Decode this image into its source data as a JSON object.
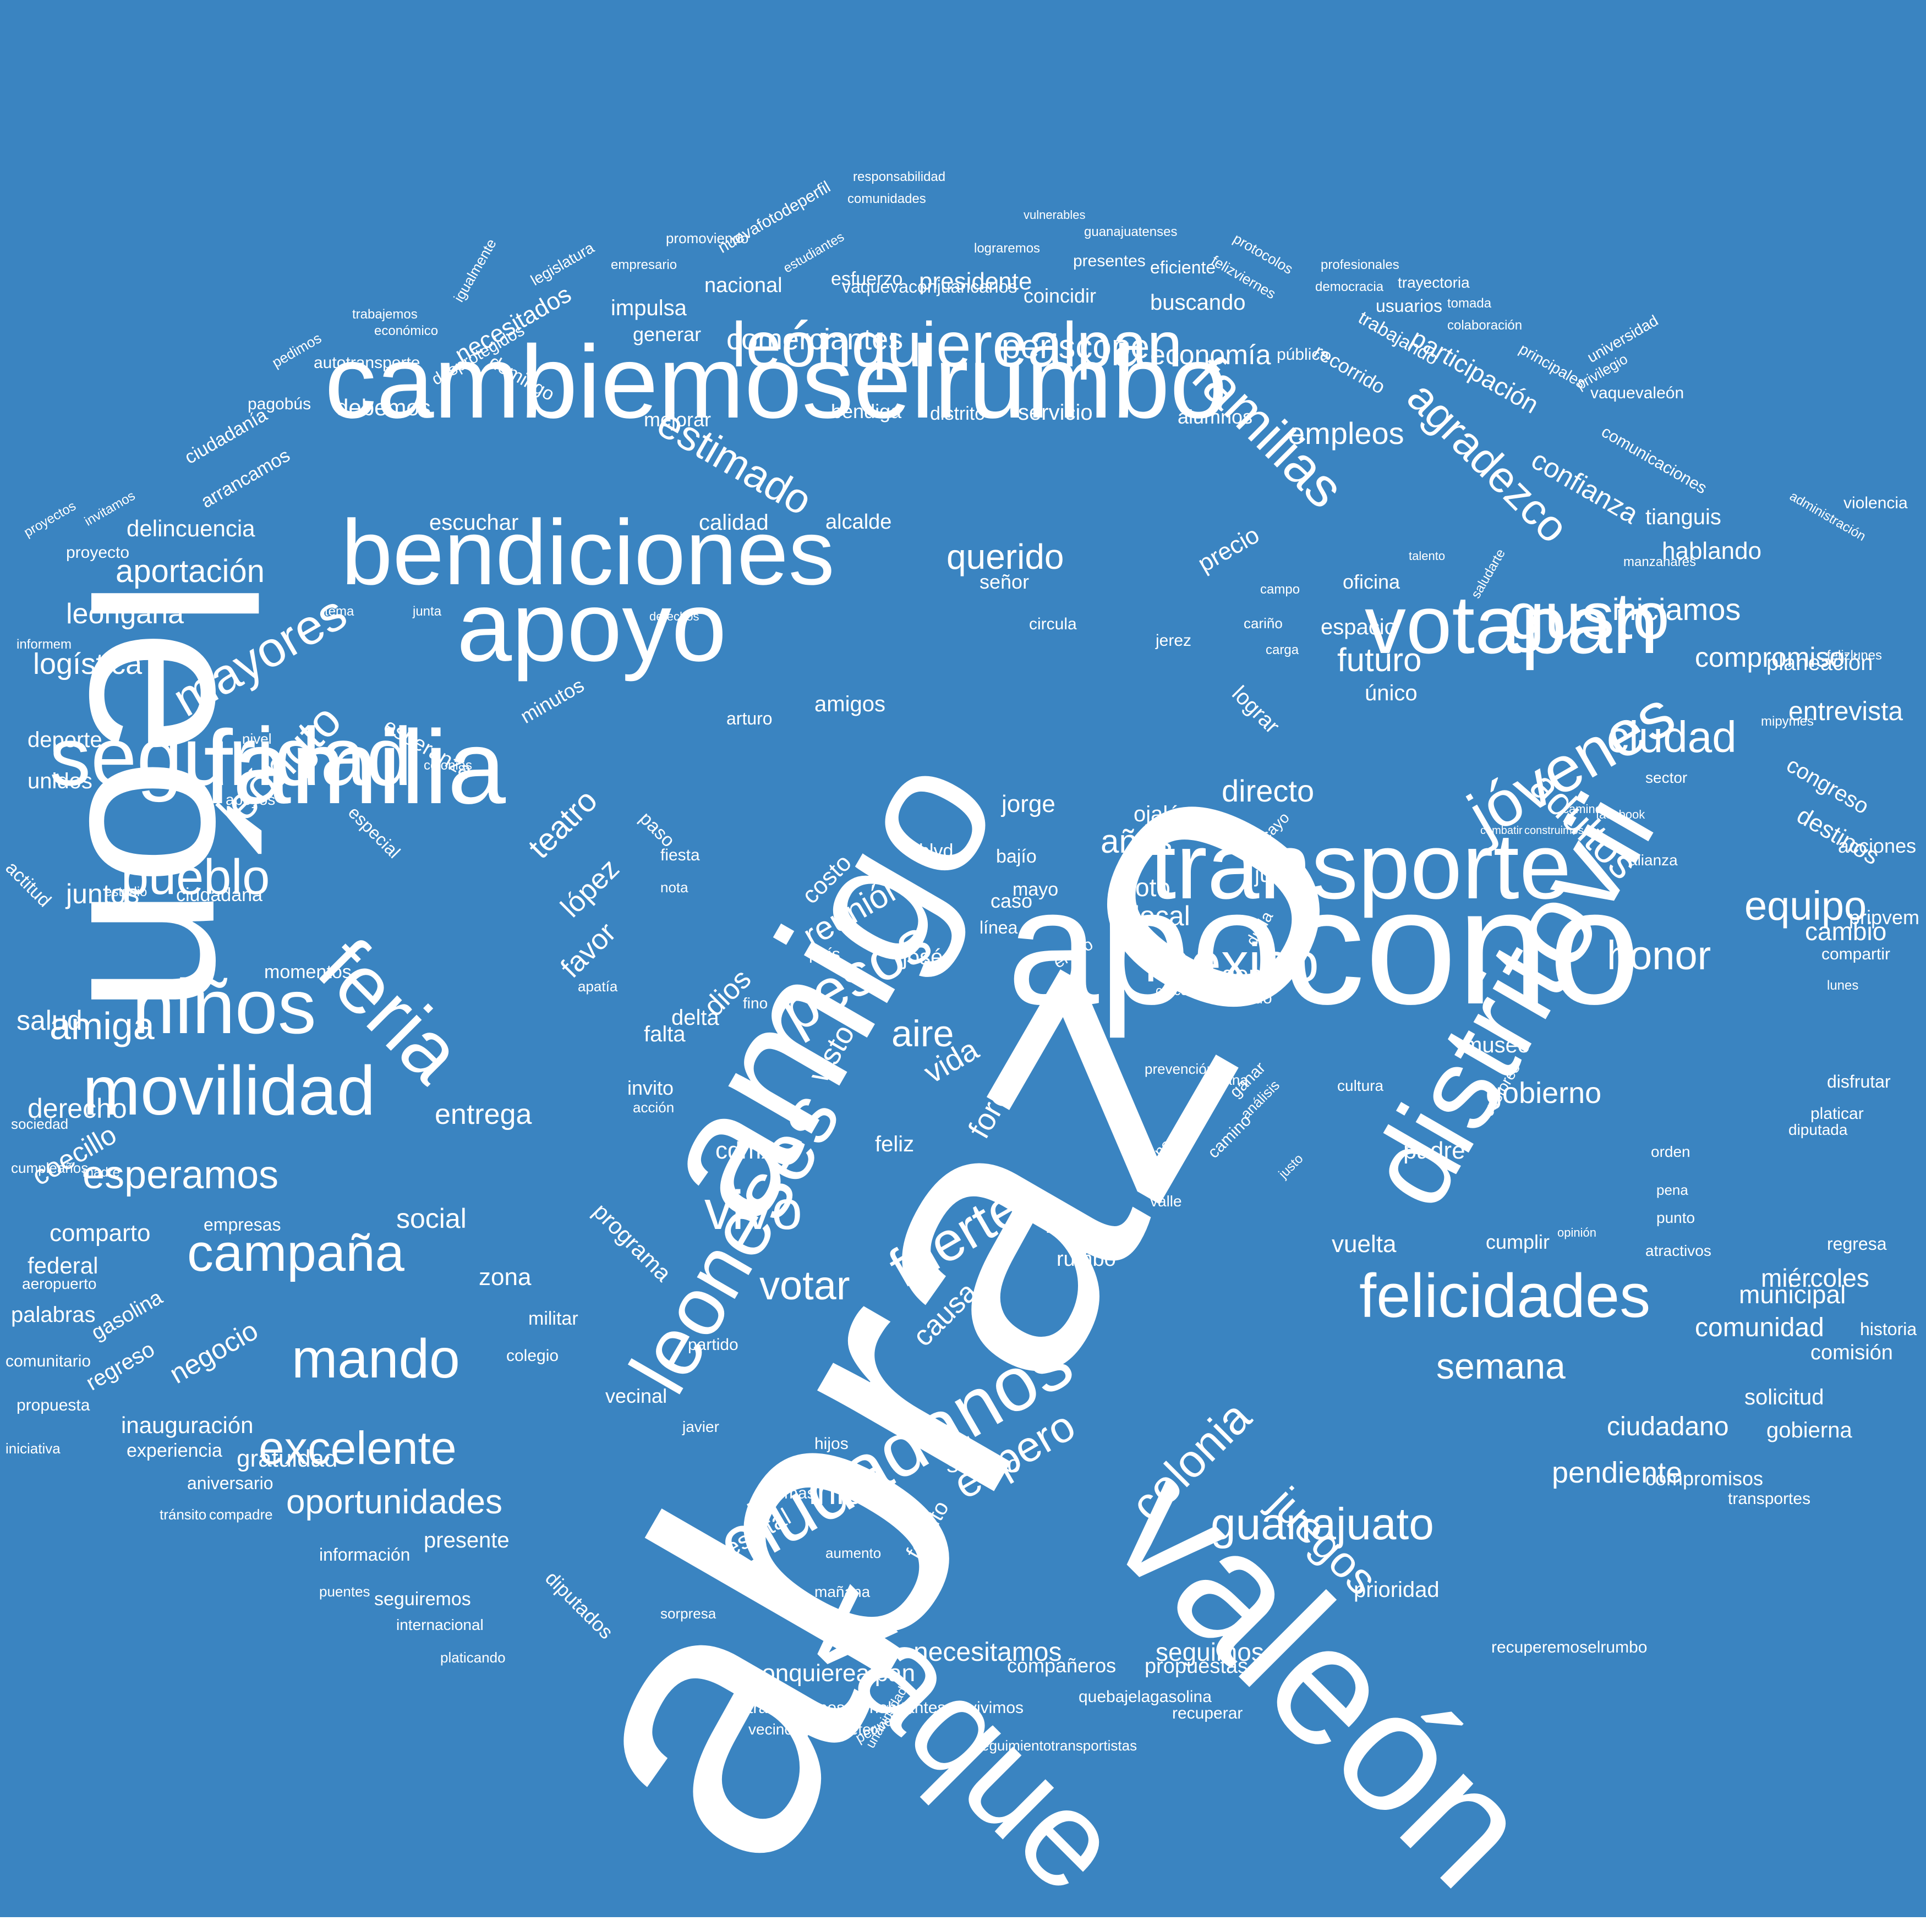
{
  "colors": {
    "background": "#3a84c1",
    "text": "#ffffff",
    "border": "#ffffff"
  },
  "words": [
    "abrazo",
    "león",
    "amigo",
    "valeón",
    "apocono",
    "distritovii",
    "vaquevaleón",
    "cambiemoselrumbo",
    "bendiciones",
    "apoyo",
    "familia",
    "votapan",
    "transporte",
    "leonesesciudadanos",
    "ciudadanos",
    "leoneses",
    "seguridad",
    "movilidad",
    "feria",
    "niños",
    "leónquierealpan",
    "familias",
    "jóvenes",
    "gusto",
    "méxico",
    "felicidades",
    "pesos",
    "fuerte",
    "campaña",
    "mando",
    "excelente",
    "pueblo",
    "mayores",
    "leóngto",
    "guanajuato",
    "colonia",
    "juegos",
    "espero",
    "oportunidades",
    "esperamos",
    "amiga",
    "agradezco",
    "adultos",
    "ciudad",
    "equipo",
    "honor",
    "semana",
    "vivo",
    "votar",
    "teatro",
    "reunión",
    "aire",
    "vida",
    "dios",
    "estimado",
    "periscope",
    "comerciantes",
    "economía",
    "empleos",
    "confianza",
    "participación",
    "iniciamos",
    "compromiso",
    "querido",
    "aportación",
    "delincuencia",
    "logística",
    "salud",
    "derecho",
    "leóngana",
    "juntos",
    "unidos",
    "deporte",
    "coecillo",
    "entrega",
    "negocio",
    "inauguración",
    "gratuidad",
    "ciudadano",
    "pendiente",
    "necesitamos",
    "seguimos",
    "leonquierealpan",
    "inicio",
    "seguro",
    "directo",
    "años",
    "voto",
    "local",
    "gente",
    "gobierno",
    "museo",
    "futuro",
    "espacio",
    "oficina",
    "único",
    "tianguis",
    "hablando",
    "planeación",
    "entrevista",
    "congreso",
    "destinos",
    "acciones",
    "cambio",
    "comunidad",
    "municipal",
    "comisión",
    "solicitud",
    "gobierna",
    "compromisos",
    "transportes",
    "miércoles",
    "historia",
    "regresa",
    "cumplir",
    "vuelta",
    "padre",
    "prioridad",
    "propuestas",
    "compañeros",
    "recuperemoselrumbo",
    "quebajelagasolina",
    "trabajaremos",
    "habitantes",
    "vivimos",
    "recuperar",
    "seguimiento",
    "transportistas",
    "felicito",
    "estatal",
    "causa",
    "visto",
    "foro",
    "costo",
    "favor",
    "lópez",
    "josé",
    "blvd",
    "jorge",
    "ojalá",
    "bajío",
    "mayo",
    "junio",
    "lograr",
    "cdmx",
    "feliz",
    "listos",
    "rumbo",
    "zona",
    "social",
    "comparto",
    "empresas",
    "federal",
    "palabras",
    "gasolina",
    "regreso",
    "comunitario",
    "propuesta",
    "experiencia",
    "aniversario",
    "tránsito",
    "compadre",
    "información",
    "puentes",
    "internacional",
    "platicando",
    "seguiremos",
    "presente",
    "diputados",
    "programa",
    "partido",
    "militar",
    "colegio",
    "vecinal",
    "javier",
    "hijos",
    "temas",
    "aumento",
    "vecinos",
    "prometer",
    "pequeños",
    "unanimidad",
    "mañana",
    "sorpresa",
    "presidente",
    "coincidir",
    "buscando",
    "eficiente",
    "nacional",
    "esfuerzo",
    "impulsa",
    "generar",
    "bendiga",
    "distrito",
    "servicio",
    "alumnos",
    "mejorar",
    "domingo",
    "debemos",
    "autotransporte",
    "necesitados",
    "desprotegidos",
    "legislatura",
    "igualmente",
    "pagobús",
    "ciudadanía",
    "arrancamos",
    "invitamos",
    "proyecto",
    "proyectos",
    "escuchar",
    "calidad",
    "alcalde",
    "señor",
    "amigos",
    "precio",
    "trabajando",
    "recorrido",
    "pública",
    "usuarios",
    "tomada",
    "colaboración",
    "principales",
    "universidad",
    "comunicaciones",
    "violencia",
    "administración",
    "privilegio",
    "vaquevaleón",
    "manzanares",
    "responsabilidad",
    "vaquevaconjuancarlos",
    "comunidades",
    "lograremos",
    "nuevafotodeperfil",
    "promoviendo",
    "empresario",
    "estudiantes",
    "vulnerables",
    "guanajuatenses",
    "presentes",
    "protocolos",
    "felizviernes",
    "democracia",
    "trayectoria",
    "profesionales",
    "económico",
    "trabajemos",
    "pedimos",
    "esperanza",
    "minutos",
    "arturo",
    "circula",
    "mundo",
    "duda",
    "tocayo",
    "alianza",
    "sector",
    "ganar",
    "análisis",
    "nivel",
    "apoyos",
    "especial",
    "actitud",
    "estudio",
    "ciudadana",
    "momentos",
    "apatía",
    "fiesta",
    "paso",
    "nota",
    "país",
    "caso",
    "línea",
    "éxito",
    "enero",
    "cultura",
    "prevención",
    "gana",
    "gane",
    "valle",
    "camino",
    "justo",
    "castores",
    "pena",
    "orden",
    "punto",
    "diputada",
    "platicar",
    "disfrutar",
    "compartir",
    "lunes",
    "pripvem",
    "directo",
    "escuchar",
    "iniciativa",
    "aeropuerto",
    "madre",
    "sociedad",
    "cumpleaños",
    "colonias",
    "derechos",
    "junta",
    "tema",
    "informem",
    "reunión",
    "fino",
    "falta",
    "delta",
    "gasolina",
    "invito",
    "acción",
    "crecer",
    "cariño",
    "carga",
    "campo",
    "jerez",
    "atractivos",
    "vaquevaleón",
    "felizlunes",
    "mipymes",
    "facebook",
    "combatir",
    "construimos",
    "caminos",
    "opinión",
    "saludarte",
    "talento"
  ],
  "large_words": {
    "w1": "abrazo",
    "w2": "león",
    "w3": "amigo",
    "w4": "valeón",
    "w5": "apocono",
    "w6": "distritovii",
    "w7": "vaque",
    "w8": "cambiemoselrumbo",
    "w9": "bendiciones",
    "w10": "apoyo",
    "w11": "familia",
    "w12": "votapan",
    "w13": "transporte",
    "w14": "ciudadanos",
    "w15": "leoneses",
    "w16": "seguridad",
    "w17": "movilidad",
    "w18": "feria",
    "w19": "niños",
    "w20": "leónquierealpan",
    "w21": "familias",
    "w22": "jóvenes",
    "w23": "gusto",
    "w24": "méxico",
    "w25": "felicidades",
    "w26": "pesos",
    "w27": "fuerte",
    "w28": "campaña",
    "w29": "mando",
    "w30": "excelente",
    "w31": "pueblo",
    "w32": "mayores",
    "w33": "leóngto",
    "w34": "guanajuato",
    "w35": "colonia",
    "w36": "juegos",
    "w37": "espero",
    "w38": "oportunidades",
    "w39": "esperamos",
    "w40": "amiga",
    "w41": "agradezco",
    "w42": "adultos",
    "w43": "ciudad",
    "w44": "equipo",
    "w45": "honor",
    "w46": "semana",
    "w47": "vivo",
    "w48": "votar",
    "w49": "teatro",
    "w50": "reunión",
    "w51": "aire",
    "w52": "vida",
    "w53": "dios",
    "w54": "estimado",
    "w55": "periscope",
    "w56": "comerciantes",
    "w57": "economía",
    "w58": "empleos",
    "w59": "confianza",
    "w60": "participación",
    "w61": "iniciamos",
    "w62": "compromiso",
    "w63": "querido",
    "w64": "aportación",
    "w65": "delincuencia",
    "w66": "logística",
    "w67": "salud",
    "w68": "derecho",
    "w69": "leóngana",
    "w70": "juntos",
    "w71": "unidos",
    "w72": "deporte",
    "w73": "coecillo",
    "w74": "entrega",
    "w75": "negocio",
    "w76": "inauguración",
    "w77": "gratuidad",
    "w78": "ciudadano",
    "w79": "pendiente",
    "w80": "necesitamos",
    "w81": "seguimos",
    "w82": "leonquierealpan",
    "w83": "inicio",
    "w84": "seguro",
    "w85": "directo",
    "w86": "años",
    "w87": "voto",
    "w88": "local",
    "w89": "gente",
    "w90": "gobierno",
    "w91": "museo",
    "w92": "futuro",
    "w93": "espacio",
    "w94": "oficina",
    "w95": "único",
    "w96": "tianguis",
    "w97": "hablando",
    "w98": "planeación",
    "w99": "entrevista",
    "w100": "congreso",
    "w101": "destinos",
    "w102": "acciones",
    "w103": "cambio",
    "w104": "comunidad",
    "w105": "municipal",
    "w106": "comisión",
    "w107": "solicitud",
    "w108": "gobierna",
    "w109": "compromisos",
    "w110": "transportes",
    "w111": "miércoles",
    "w112": "historia",
    "w113": "regresa",
    "w114": "cumplir",
    "w115": "vuelta",
    "w116": "padre",
    "w117": "prioridad",
    "w118": "propuestas",
    "w119": "compañeros",
    "w120": "recuperemoselrumbo",
    "w121": "quebajelagasolina",
    "w122": "trabajaremos",
    "w123": "habitantes",
    "w124": "vivimos",
    "w125": "recuperar",
    "w126": "seguimiento",
    "w127": "transportistas",
    "w128": "felicito",
    "w129": "estatal",
    "w130": "causa",
    "w131": "visto",
    "w132": "foro",
    "w133": "costo",
    "w134": "favor",
    "w135": "lópez",
    "w136": "josé",
    "w137": "blvd",
    "w138": "jorge",
    "w139": "ojalá",
    "w140": "bajío",
    "w141": "mayo",
    "w142": "junio",
    "w143": "lograr",
    "w144": "cdmx",
    "w145": "feliz",
    "w146": "listos",
    "w147": "rumbo",
    "w148": "zona",
    "w149": "social",
    "w150": "comparto",
    "w151": "empresas",
    "w152": "federal",
    "w153": "palabras",
    "w154": "gasolina",
    "w155": "regreso",
    "w156": "comunitario",
    "w157": "propuesta",
    "w158": "experiencia",
    "w159": "aniversario",
    "w160": "tránsito",
    "w161": "compadre",
    "w162": "información",
    "w163": "puentes",
    "w164": "internacional",
    "w165": "platicando",
    "w166": "seguiremos",
    "w167": "presente",
    "w168": "diputados",
    "w169": "programa",
    "w170": "partido",
    "w171": "militar",
    "w172": "colegio",
    "w173": "vecinal",
    "w174": "javier",
    "w175": "hijos",
    "w176": "temas",
    "w177": "aumento",
    "w178": "vecinos",
    "w179": "prometer",
    "w180": "pequeños",
    "w181": "unanimidad",
    "w182": "mañana",
    "w183": "sorpresa",
    "w184": "presidente",
    "w185": "coincidir",
    "w186": "buscando",
    "w187": "eficiente",
    "w188": "nacional",
    "w189": "esfuerzo",
    "w190": "impulsa",
    "w191": "generar",
    "w192": "bendiga",
    "w193": "distrito",
    "w194": "servicio",
    "w195": "alumnos",
    "w196": "mejorar",
    "w197": "domingo",
    "w198": "debemos",
    "w199": "autotransporte",
    "w200": "necesitados",
    "w201": "desprotegidos",
    "w202": "legislatura",
    "w203": "igualmente",
    "w204": "pagobús",
    "w205": "ciudadanía",
    "w206": "arrancamos",
    "w207": "invitamos",
    "w208": "proyecto",
    "w209": "proyectos",
    "w210": "escuchar",
    "w211": "calidad",
    "w212": "alcalde",
    "w213": "señor",
    "w214": "amigos",
    "w215": "precio",
    "w216": "trabajando",
    "w217": "recorrido",
    "w218": "pública",
    "w219": "usuarios",
    "w220": "tomada",
    "w221": "colaboración",
    "w222": "principales",
    "w223": "universidad",
    "w224": "comunicaciones",
    "w225": "violencia",
    "w226": "administración",
    "w227": "privilegio",
    "w228": "vaquevaleón",
    "w229": "manzanares",
    "w230": "responsabilidad",
    "w231": "vaquevaconjuancarlos",
    "w232": "comunidades",
    "w233": "lograremos",
    "w234": "nuevafotodeperfil",
    "w235": "promoviendo",
    "w236": "empresario",
    "w237": "estudiantes",
    "w238": "vulnerables",
    "w239": "guanajuatenses",
    "w240": "presentes",
    "w241": "protocolos",
    "w242": "felizviernes",
    "w243": "democracia",
    "w244": "trayectoria",
    "w245": "profesionales",
    "w246": "económico",
    "w247": "trabajemos",
    "w248": "pedimos",
    "w249": "esperanza",
    "w250": "minutos",
    "w251": "arturo",
    "w252": "circula",
    "w253": "mundo",
    "w254": "duda",
    "w255": "tocayo",
    "w256": "alianza",
    "w257": "sector",
    "w258": "ganar",
    "w259": "análisis",
    "w260": "nivel",
    "w261": "apoyos",
    "w262": "especial",
    "w263": "actitud",
    "w264": "estudio",
    "w265": "ciudadana",
    "w266": "momentos",
    "w267": "apatía",
    "w268": "fiesta",
    "w269": "paso",
    "w270": "nota",
    "w271": "país",
    "w272": "caso",
    "w273": "línea",
    "w274": "éxito",
    "w275": "enero",
    "w276": "cultura",
    "w277": "prevención",
    "w278": "gana",
    "w279": "gane",
    "w280": "valle",
    "w281": "camino",
    "w282": "justo",
    "w283": "castores",
    "w284": "pena",
    "w285": "orden",
    "w286": "punto",
    "w287": "diputada",
    "w288": "platicar",
    "w289": "disfrutar",
    "w290": "compartir",
    "w291": "lunes",
    "w292": "pripvem",
    "w293": "iniciativa",
    "w294": "aeropuerto",
    "w295": "madre",
    "w296": "sociedad",
    "w297": "cumpleaños",
    "w298": "colonias",
    "w299": "derechos",
    "w300": "junta",
    "w301": "tema",
    "w302": "informem",
    "w303": "fino",
    "w304": "falta",
    "w305": "delta",
    "w306": "invito",
    "w307": "acción",
    "w308": "crecer",
    "w309": "cariño",
    "w310": "carga",
    "w311": "campo",
    "w312": "jerez",
    "w313": "atractivos",
    "w314": "felizlunes",
    "w315": "mipymes",
    "w316": "facebook",
    "w317": "combatir",
    "w318": "construimos",
    "w319": "caminos",
    "w320": "opinión",
    "w321": "saludarte",
    "w322": "talento"
  }
}
